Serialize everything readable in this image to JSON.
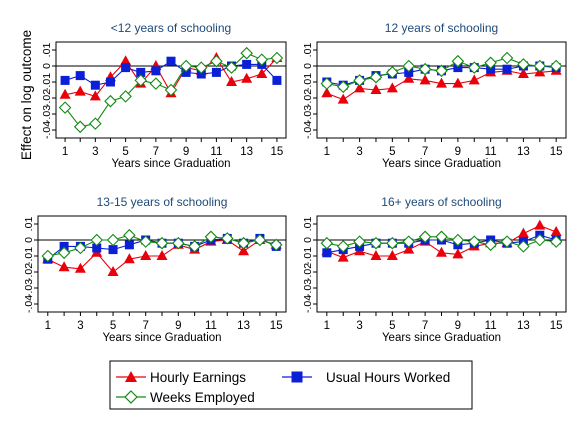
{
  "chart_data": [
    {
      "type": "line",
      "title": "<12 years of schooling",
      "xlabel": "Years since Graduation",
      "ylabel": "Effect on log outcome",
      "x": [
        1,
        2,
        3,
        4,
        5,
        6,
        7,
        8,
        9,
        10,
        11,
        12,
        13,
        14,
        15
      ],
      "xticks": [
        "1",
        "3",
        "5",
        "7",
        "9",
        "11",
        "13",
        "15"
      ],
      "yticks": [
        ".01",
        "0",
        "-.01",
        "-.02",
        "-.03",
        "-.04"
      ],
      "ylim": [
        -0.045,
        0.015
      ],
      "grid": false,
      "series": [
        {
          "name": "Hourly Earnings",
          "values": [
            -0.018,
            -0.016,
            -0.019,
            -0.007,
            0.003,
            -0.011,
            0.0,
            -0.017,
            -0.001,
            -0.003,
            0.005,
            -0.01,
            -0.008,
            -0.005,
            0.005
          ]
        },
        {
          "name": "Usual Hours Worked",
          "values": [
            -0.009,
            -0.006,
            -0.012,
            -0.01,
            -0.001,
            -0.004,
            -0.003,
            0.003,
            -0.004,
            -0.005,
            -0.004,
            0.0,
            0.001,
            0.001,
            -0.009
          ]
        },
        {
          "name": "Weeks Employed",
          "values": [
            -0.026,
            -0.038,
            -0.036,
            -0.022,
            -0.019,
            -0.009,
            -0.011,
            -0.015,
            0.0,
            -0.001,
            0.003,
            -0.001,
            0.008,
            0.004,
            0.005
          ]
        }
      ]
    },
    {
      "type": "line",
      "title": "12 years of schooling",
      "xlabel": "Years since Graduation",
      "ylabel": "",
      "x": [
        1,
        2,
        3,
        4,
        5,
        6,
        7,
        8,
        9,
        10,
        11,
        12,
        13,
        14,
        15
      ],
      "xticks": [
        "1",
        "3",
        "5",
        "7",
        "9",
        "11",
        "13",
        "15"
      ],
      "yticks": [
        ".01",
        "0",
        "-.01",
        "-.02",
        "-.03",
        "-.04"
      ],
      "ylim": [
        -0.045,
        0.015
      ],
      "grid": false,
      "series": [
        {
          "name": "Hourly Earnings",
          "values": [
            -0.017,
            -0.021,
            -0.014,
            -0.015,
            -0.014,
            -0.008,
            -0.009,
            -0.011,
            -0.011,
            -0.009,
            -0.004,
            -0.003,
            -0.005,
            -0.004,
            -0.003
          ]
        },
        {
          "name": "Usual Hours Worked",
          "values": [
            -0.01,
            -0.012,
            -0.009,
            -0.006,
            -0.005,
            -0.004,
            -0.002,
            -0.003,
            -0.001,
            -0.001,
            -0.002,
            -0.002,
            0.0,
            0.0,
            -0.001
          ]
        },
        {
          "name": "Weeks Employed",
          "values": [
            -0.011,
            -0.013,
            -0.009,
            -0.007,
            -0.004,
            0.0,
            -0.002,
            -0.003,
            0.003,
            -0.001,
            0.002,
            0.005,
            0.001,
            0.0,
            0.0
          ]
        }
      ]
    },
    {
      "type": "line",
      "title": "13-15 years of schooling",
      "xlabel": "Years since Graduation",
      "ylabel": "",
      "x": [
        1,
        2,
        3,
        4,
        5,
        6,
        7,
        8,
        9,
        10,
        11,
        12,
        13,
        14,
        15
      ],
      "xticks": [
        "1",
        "3",
        "5",
        "7",
        "9",
        "11",
        "13",
        "15"
      ],
      "yticks": [
        ".01",
        "0",
        "-.01",
        "-.02",
        "-.03",
        "-.04"
      ],
      "ylim": [
        -0.045,
        0.015
      ],
      "grid": false,
      "series": [
        {
          "name": "Hourly Earnings",
          "values": [
            -0.012,
            -0.017,
            -0.018,
            -0.008,
            -0.02,
            -0.012,
            -0.01,
            -0.01,
            -0.003,
            -0.006,
            -0.001,
            0.0,
            -0.007,
            0.0,
            -0.003
          ]
        },
        {
          "name": "Usual Hours Worked",
          "values": [
            -0.012,
            -0.004,
            -0.004,
            -0.005,
            -0.006,
            -0.003,
            0.0,
            -0.002,
            -0.002,
            -0.004,
            0.0,
            0.001,
            -0.002,
            0.001,
            -0.004
          ]
        },
        {
          "name": "Weeks Employed",
          "values": [
            -0.01,
            -0.008,
            -0.005,
            0.0,
            0.0,
            0.003,
            -0.001,
            -0.002,
            -0.002,
            -0.004,
            0.002,
            0.001,
            -0.002,
            0.0,
            -0.003
          ]
        }
      ]
    },
    {
      "type": "line",
      "title": "16+ years of schooling",
      "xlabel": "Years since Graduation",
      "ylabel": "",
      "x": [
        1,
        2,
        3,
        4,
        5,
        6,
        7,
        8,
        9,
        10,
        11,
        12,
        13,
        14,
        15
      ],
      "xticks": [
        "1",
        "3",
        "5",
        "7",
        "9",
        "11",
        "13",
        "15"
      ],
      "yticks": [
        ".01",
        "0",
        "-.01",
        "-.02",
        "-.03",
        "-.04"
      ],
      "ylim": [
        -0.045,
        0.015
      ],
      "grid": false,
      "series": [
        {
          "name": "Hourly Earnings",
          "values": [
            -0.007,
            -0.011,
            -0.007,
            -0.01,
            -0.01,
            -0.006,
            -0.001,
            -0.008,
            -0.009,
            -0.004,
            -0.002,
            -0.002,
            0.004,
            0.009,
            0.005
          ]
        },
        {
          "name": "Usual Hours Worked",
          "values": [
            -0.008,
            -0.006,
            -0.004,
            -0.002,
            -0.002,
            -0.002,
            0.0,
            0.0,
            -0.003,
            -0.002,
            0.0,
            -0.002,
            -0.001,
            0.003,
            0.0
          ]
        },
        {
          "name": "Weeks Employed",
          "values": [
            -0.002,
            -0.004,
            -0.001,
            -0.002,
            -0.002,
            -0.001,
            0.002,
            0.002,
            0.0,
            -0.001,
            -0.003,
            -0.001,
            -0.004,
            0.0,
            -0.001
          ]
        }
      ]
    }
  ],
  "legend": {
    "placement": "bottom",
    "items": [
      {
        "label": "Hourly Earnings",
        "marker": "triangle",
        "color": "#e8000b"
      },
      {
        "label": "Usual Hours Worked",
        "marker": "square",
        "color": "#0b1fd6"
      },
      {
        "label": "Weeks Employed",
        "marker": "diamond",
        "color": "#138a13"
      }
    ]
  },
  "colors": {
    "hourly_earnings": "#e8000b",
    "usual_hours": "#0b1fd6",
    "weeks_employed": "#138a13",
    "title": "#1c4a7a"
  }
}
